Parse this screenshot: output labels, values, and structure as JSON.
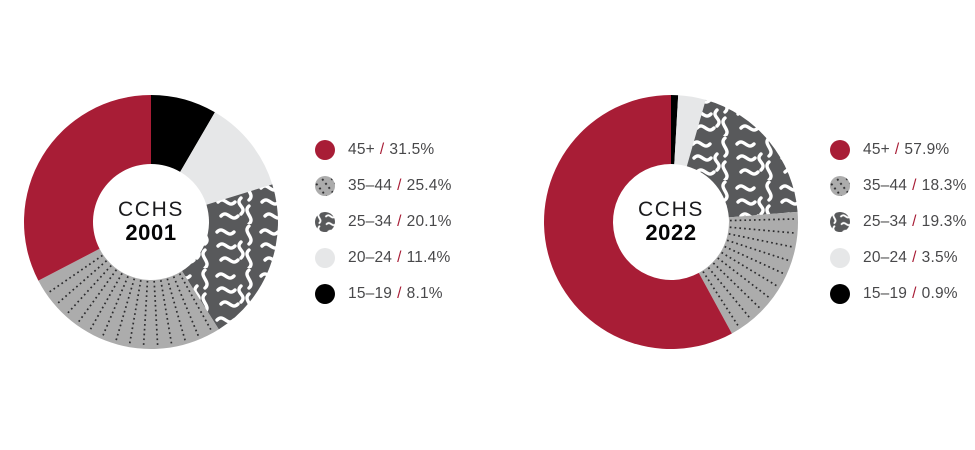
{
  "colors": {
    "red": "#A81D36",
    "dotted_gray": "#ACACAC",
    "dot_color": "#2B2B2D",
    "wavy_gray": "#58595B",
    "light_gray": "#E6E7E8",
    "black": "#000000",
    "legend_text": "#48484A",
    "separator": "#A81D36",
    "center_text": "#111113"
  },
  "legend_separator": "/",
  "chart_data": [
    {
      "type": "pie",
      "variant": "donut",
      "center_label": {
        "line1": "CCHS",
        "line2": "2001"
      },
      "categories": [
        "45+",
        "35–44",
        "25–34",
        "20–24",
        "15–19"
      ],
      "values": [
        31.5,
        25.4,
        20.1,
        11.4,
        8.1
      ],
      "pct_labels": [
        "31.5%",
        "25.4%",
        "20.1%",
        "11.4%",
        "8.1%"
      ],
      "slice_styles": [
        "red",
        "dotted",
        "wavy",
        "light",
        "black"
      ],
      "layout": {
        "direction": "clockwise-from-top",
        "draw_order": "reversed",
        "legend_position": "right"
      }
    },
    {
      "type": "pie",
      "variant": "donut",
      "center_label": {
        "line1": "CCHS",
        "line2": "2022"
      },
      "categories": [
        "45+",
        "35–44",
        "25–34",
        "20–24",
        "15–19"
      ],
      "values": [
        57.9,
        18.3,
        19.3,
        3.5,
        0.9
      ],
      "pct_labels": [
        "57.9%",
        "18.3%",
        "19.3%",
        "3.5%",
        "0.9%"
      ],
      "slice_styles": [
        "red",
        "dotted",
        "wavy",
        "light",
        "black"
      ],
      "layout": {
        "direction": "clockwise-from-top",
        "draw_order": "reversed",
        "legend_position": "right"
      }
    }
  ]
}
